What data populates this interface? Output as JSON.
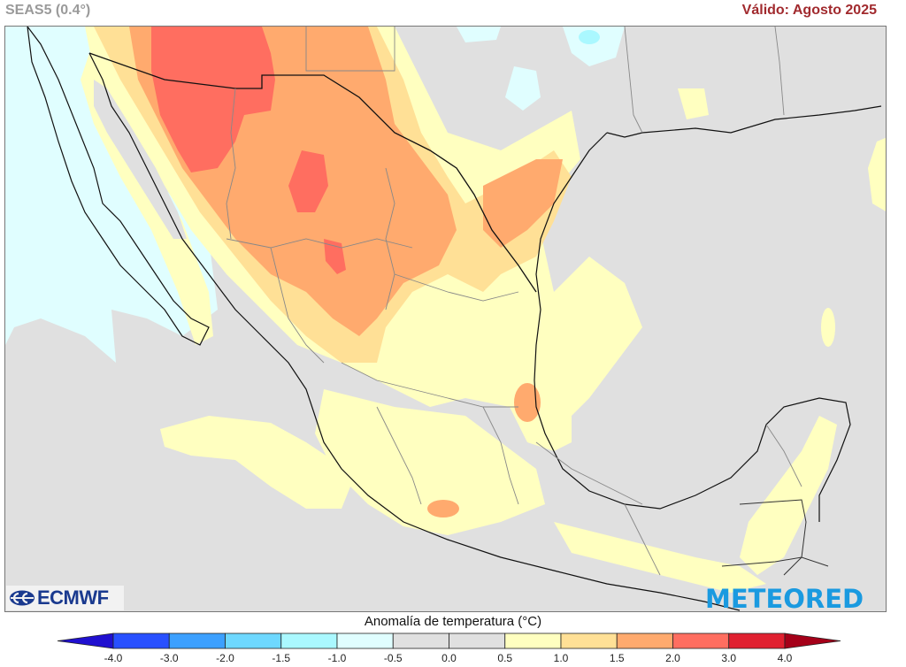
{
  "header": {
    "model": "SEAS5 (0.4°)",
    "valid": "Válido: Agosto 2025"
  },
  "logos": {
    "left": "ECMWF",
    "right": "METEORED"
  },
  "colorbar": {
    "title": "Anomalía de temperatura (°C)",
    "labels": [
      "-4.0",
      "-3.0",
      "-2.0",
      "-1.5",
      "-1.0",
      "-0.5",
      "0.0",
      "0.5",
      "1.0",
      "1.5",
      "2.0",
      "3.0",
      "4.0"
    ],
    "below_color": "#2010d0",
    "above_color": "#a50019",
    "segments": [
      {
        "range": "-4.0 to -3.0",
        "color": "#2850ff"
      },
      {
        "range": "-3.0 to -2.0",
        "color": "#3ca0ff"
      },
      {
        "range": "-2.0 to -1.5",
        "color": "#6ed8ff"
      },
      {
        "range": "-1.5 to -1.0",
        "color": "#aaf8ff"
      },
      {
        "range": "-1.0 to -0.5",
        "color": "#e0feff"
      },
      {
        "range": "-0.5 to 0.0",
        "color": "#e0e0e0"
      },
      {
        "range": "0.0 to 0.5",
        "color": "#e0e0e0"
      },
      {
        "range": "0.5 to 1.0",
        "color": "#ffffc0"
      },
      {
        "range": "1.0 to 1.5",
        "color": "#ffe096"
      },
      {
        "range": "1.5 to 2.0",
        "color": "#ffaa6e"
      },
      {
        "range": "2.0 to 3.0",
        "color": "#ff6e60"
      },
      {
        "range": "3.0 to 4.0",
        "color": "#e02030"
      }
    ]
  },
  "map": {
    "region": "México",
    "variable": "Anomalía de temperatura (°C)",
    "colors": {
      "neutral": "#e0e0e0",
      "slight_cold": "#e0feff",
      "cold": "#aaf8ff",
      "warm_05": "#ffffc0",
      "warm_10": "#ffe096",
      "warm_15": "#ffaa6e",
      "warm_20": "#ff6e60"
    }
  }
}
